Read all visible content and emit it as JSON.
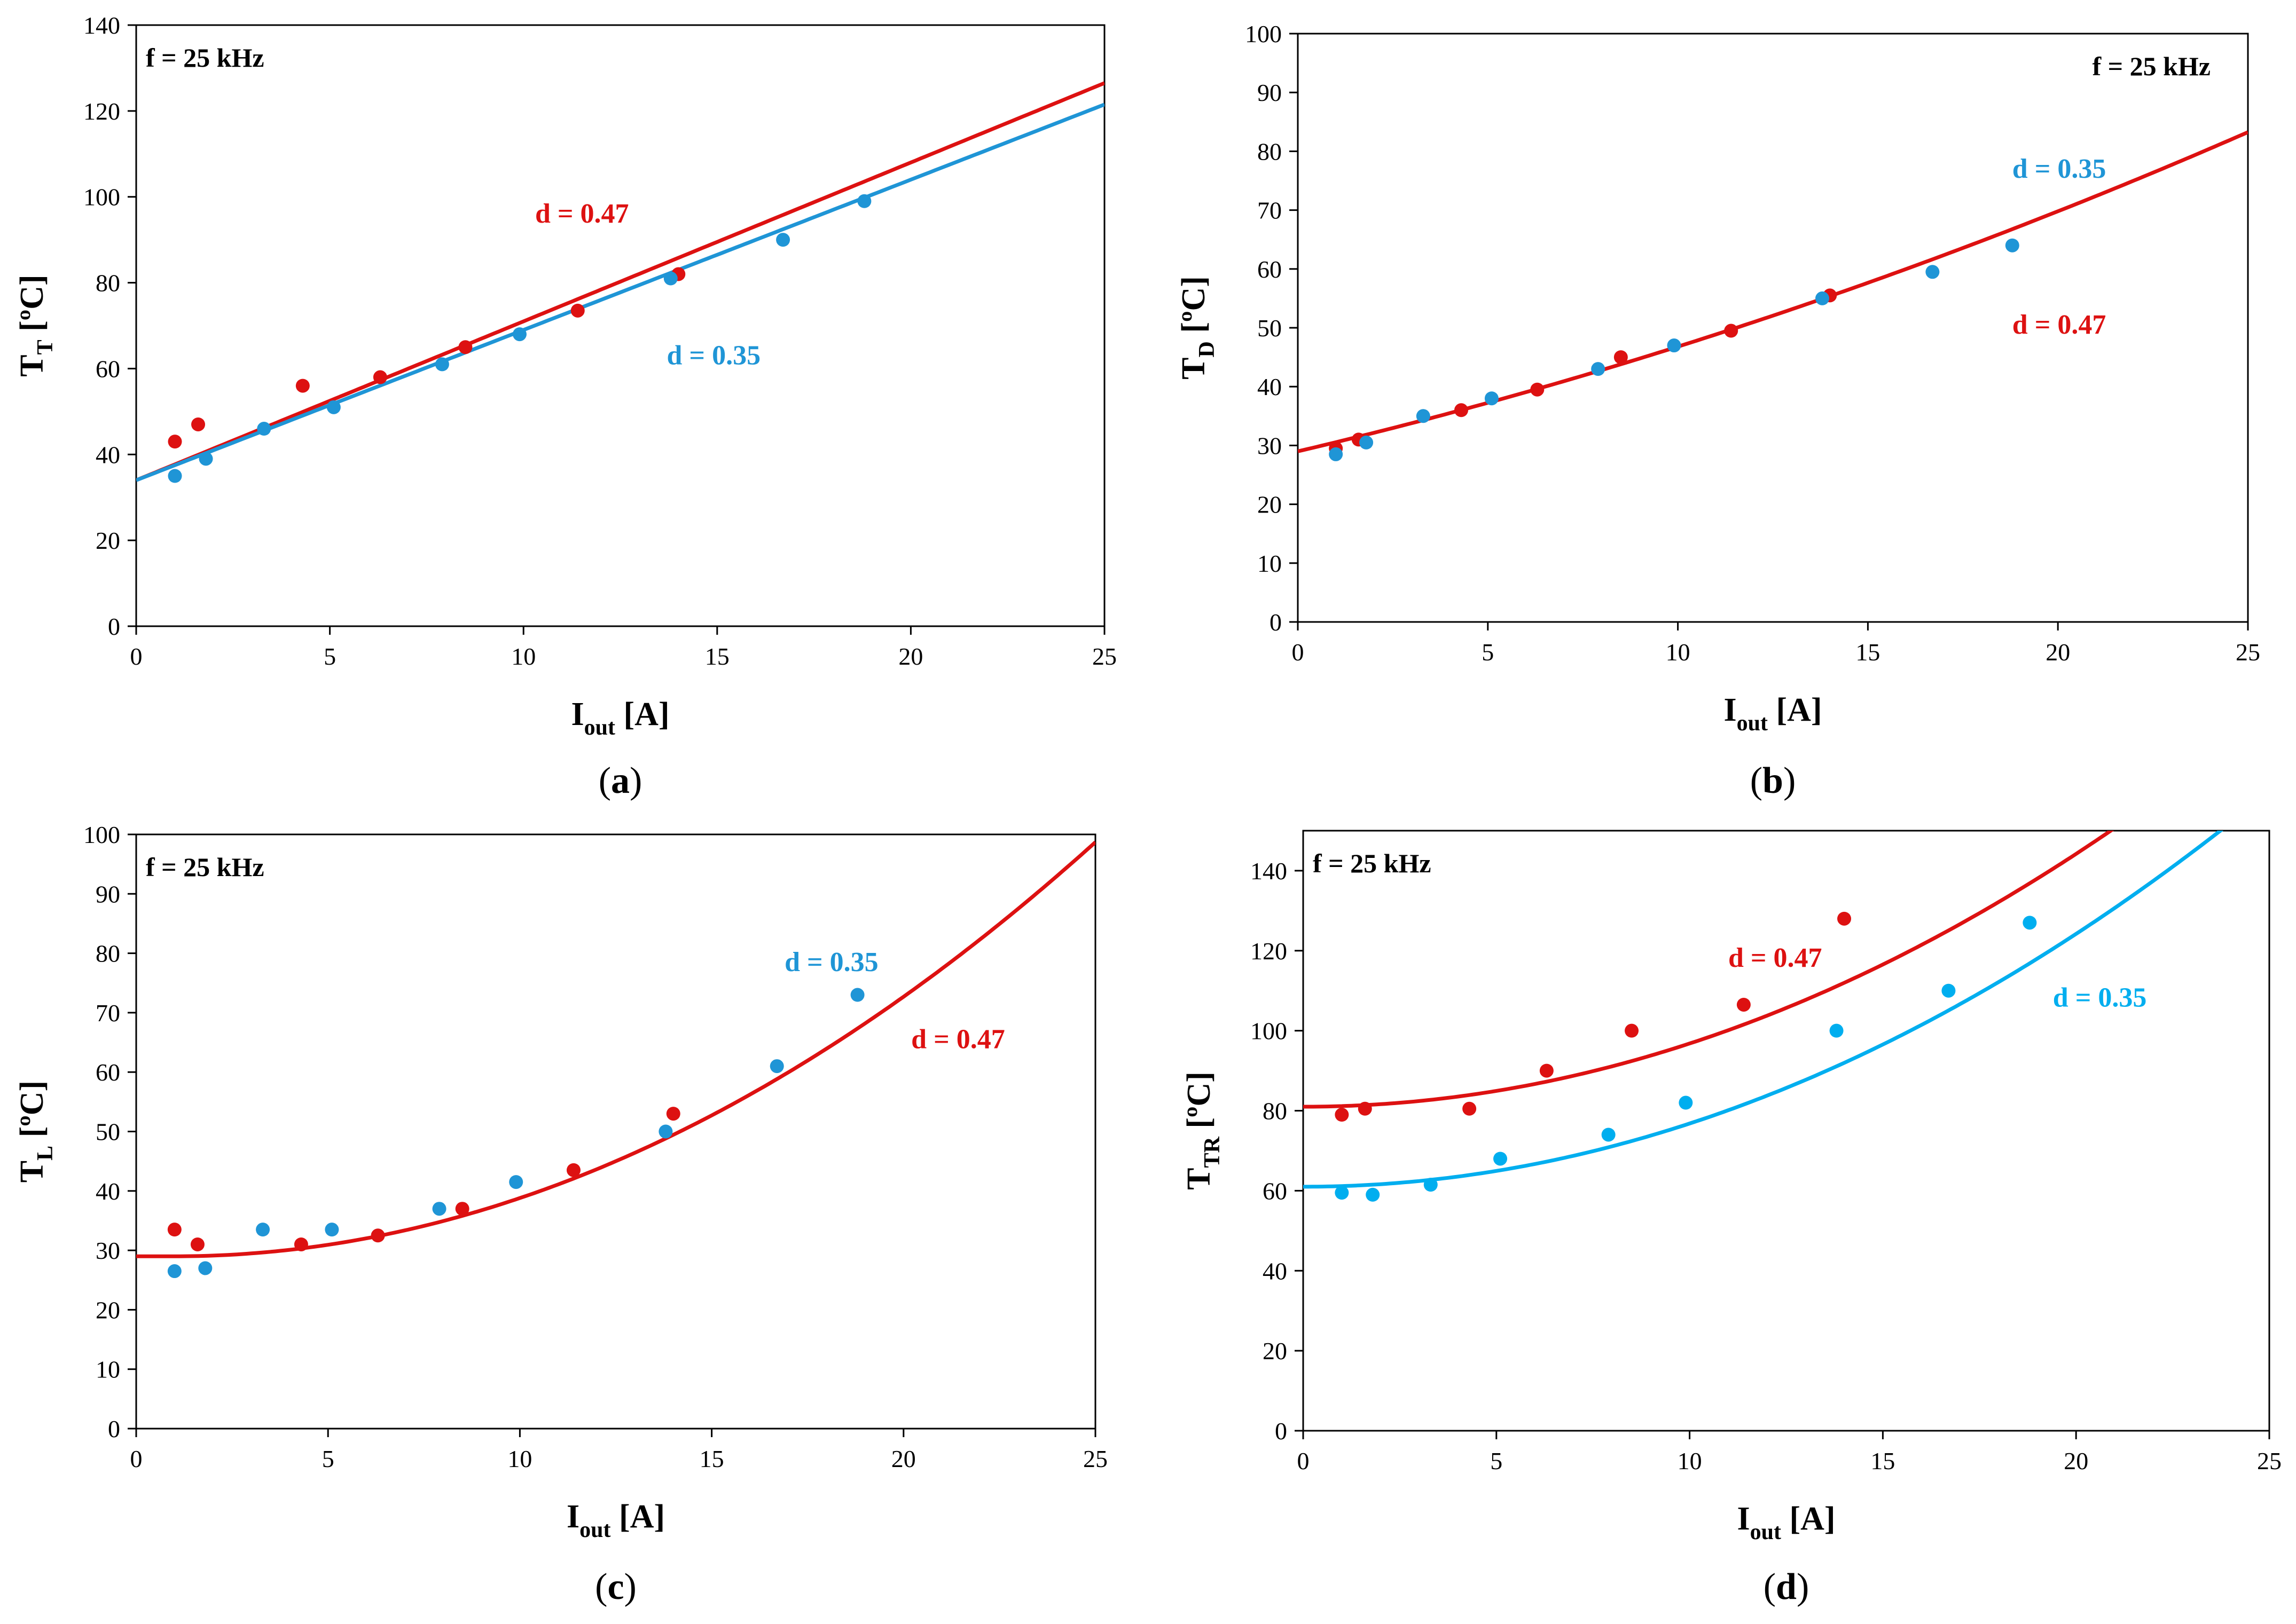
{
  "chart_data": [
    {
      "type": "scatter",
      "id": "a",
      "caption": "a",
      "note": "f = 25 kHz",
      "ylabel": {
        "main": "T",
        "sub": "T",
        "unit": " [ºC]"
      },
      "xlabel": {
        "main": "I",
        "sub": "out",
        "unit": " [A]"
      },
      "xlim": [
        0,
        25
      ],
      "xticks": [
        0,
        5,
        10,
        15,
        20,
        25
      ],
      "ylim": [
        0,
        140
      ],
      "yticks": [
        0,
        20,
        40,
        60,
        80,
        100,
        120,
        140
      ],
      "series": [
        {
          "name": "d = 0.47",
          "color": "#dd1111",
          "points": [
            [
              1.0,
              43
            ],
            [
              1.6,
              47
            ],
            [
              4.3,
              56
            ],
            [
              6.3,
              58
            ],
            [
              8.5,
              65
            ],
            [
              11.4,
              73.5
            ],
            [
              14.0,
              82
            ]
          ],
          "fit": {
            "kind": "poly",
            "coef": [
              34,
              3.7,
              0
            ]
          }
        },
        {
          "name": "d = 0.35",
          "color": "#1f95d6",
          "points": [
            [
              1.0,
              35
            ],
            [
              1.8,
              39
            ],
            [
              3.3,
              46
            ],
            [
              5.1,
              51
            ],
            [
              7.9,
              61
            ],
            [
              9.9,
              68
            ],
            [
              13.8,
              81
            ],
            [
              16.7,
              90
            ],
            [
              18.8,
              99
            ]
          ],
          "fit": {
            "kind": "poly",
            "coef": [
              34,
              3.5,
              0
            ]
          }
        }
      ],
      "annotations": [
        {
          "text": "d = 0.47",
          "color": "#dd1111",
          "x": 10.3,
          "y": 94
        },
        {
          "text": "d = 0.35",
          "color": "#1f95d6",
          "x": 13.7,
          "y": 61
        }
      ]
    },
    {
      "type": "scatter",
      "id": "b",
      "caption": "b",
      "note": "f = 25 kHz",
      "ylabel": {
        "main": "T",
        "sub": "D",
        "unit": " [ºC]"
      },
      "xlabel": {
        "main": "I",
        "sub": "out",
        "unit": " [A]"
      },
      "xlim": [
        0,
        25
      ],
      "xticks": [
        0,
        5,
        10,
        15,
        20,
        25
      ],
      "ylim": [
        0,
        100
      ],
      "yticks": [
        0,
        10,
        20,
        30,
        40,
        50,
        60,
        70,
        80,
        90,
        100
      ],
      "series": [
        {
          "name": "d = 0.47",
          "color": "#dd1111",
          "points": [
            [
              1.0,
              29.5
            ],
            [
              1.6,
              31
            ],
            [
              4.3,
              36
            ],
            [
              6.3,
              39.5
            ],
            [
              8.5,
              45
            ],
            [
              11.4,
              49.5
            ],
            [
              14.0,
              55.5
            ]
          ],
          "fit": {
            "kind": "poly",
            "coef": [
              29,
              1.52,
              0.026
            ]
          }
        },
        {
          "name": "d = 0.35",
          "color": "#1f95d6",
          "points": [
            [
              1.0,
              28.5
            ],
            [
              1.8,
              30.5
            ],
            [
              3.3,
              35
            ],
            [
              5.1,
              38
            ],
            [
              7.9,
              43
            ],
            [
              9.9,
              47
            ],
            [
              13.8,
              55
            ],
            [
              16.7,
              59.5
            ],
            [
              18.8,
              64
            ]
          ],
          "fit": null
        }
      ],
      "annotations": [
        {
          "text": "d = 0.35",
          "color": "#1f95d6",
          "x": 18.8,
          "y": 75.5
        },
        {
          "text": "d = 0.47",
          "color": "#dd1111",
          "x": 18.8,
          "y": 49
        }
      ]
    },
    {
      "type": "scatter",
      "id": "c",
      "caption": "c",
      "note": "f = 25 kHz",
      "ylabel": {
        "main": "T",
        "sub": "L",
        "unit": " [ºC]"
      },
      "xlabel": {
        "main": "I",
        "sub": "out",
        "unit": " [A]"
      },
      "xlim": [
        0,
        25
      ],
      "xticks": [
        0,
        5,
        10,
        15,
        20,
        25
      ],
      "ylim": [
        0,
        100
      ],
      "yticks": [
        0,
        10,
        20,
        30,
        40,
        50,
        60,
        70,
        80,
        90,
        100
      ],
      "series": [
        {
          "name": "d = 0.47",
          "color": "#dd1111",
          "points": [
            [
              1.0,
              33.5
            ],
            [
              1.6,
              31
            ],
            [
              4.3,
              31
            ],
            [
              6.3,
              32.5
            ],
            [
              8.5,
              37
            ],
            [
              11.4,
              43.5
            ],
            [
              14.0,
              53
            ]
          ],
          "fit": {
            "kind": "parab",
            "y0": 29,
            "x0": 1.0,
            "a": 0.121
          }
        },
        {
          "name": "d = 0.35",
          "color": "#1f95d6",
          "points": [
            [
              1.0,
              26.5
            ],
            [
              1.8,
              27
            ],
            [
              3.3,
              33.5
            ],
            [
              5.1,
              33.5
            ],
            [
              7.9,
              37
            ],
            [
              9.9,
              41.5
            ],
            [
              13.8,
              50
            ],
            [
              16.7,
              61
            ],
            [
              18.8,
              73
            ]
          ],
          "fit": null
        }
      ],
      "annotations": [
        {
          "text": "d = 0.35",
          "color": "#1f95d6",
          "x": 16.9,
          "y": 77
        },
        {
          "text": "d = 0.47",
          "color": "#dd1111",
          "x": 20.2,
          "y": 64
        }
      ]
    },
    {
      "type": "scatter",
      "id": "d",
      "caption": "d",
      "note": "f = 25 kHz",
      "ylabel": {
        "main": "T",
        "sub": "TR",
        "unit": " [ºC]"
      },
      "xlabel": {
        "main": "I",
        "sub": "out",
        "unit": " [A]"
      },
      "xlim": [
        0,
        25
      ],
      "xticks": [
        0,
        5,
        10,
        15,
        20,
        25
      ],
      "ylim": [
        0,
        150
      ],
      "yticks": [
        0,
        20,
        40,
        60,
        80,
        100,
        120,
        140
      ],
      "series": [
        {
          "name": "d = 0.47",
          "color": "#dd1111",
          "points": [
            [
              1.0,
              79
            ],
            [
              1.6,
              80.5
            ],
            [
              4.3,
              80.5
            ],
            [
              6.3,
              90
            ],
            [
              8.5,
              100
            ],
            [
              11.4,
              106.5
            ],
            [
              14.0,
              128
            ]
          ],
          "fit": {
            "kind": "parab",
            "y0": 81,
            "x0": 0.0,
            "a": 0.158
          }
        },
        {
          "name": "d = 0.35",
          "color": "#00aeef",
          "points": [
            [
              1.0,
              59.5
            ],
            [
              1.8,
              59
            ],
            [
              3.3,
              61.5
            ],
            [
              5.1,
              68
            ],
            [
              7.9,
              74
            ],
            [
              9.9,
              82
            ],
            [
              13.8,
              100
            ],
            [
              16.7,
              110
            ],
            [
              18.8,
              127
            ]
          ],
          "fit": {
            "kind": "parab",
            "y0": 61,
            "x0": 0.0,
            "a": 0.158
          }
        }
      ],
      "annotations": [
        {
          "text": "d = 0.47",
          "color": "#dd1111",
          "x": 11.0,
          "y": 116
        },
        {
          "text": "d = 0.35",
          "color": "#00aeef",
          "x": 19.4,
          "y": 106
        }
      ]
    }
  ]
}
